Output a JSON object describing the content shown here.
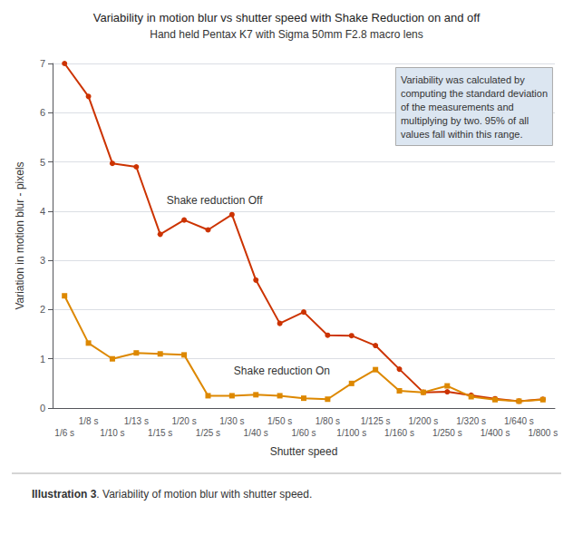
{
  "chart_data": {
    "type": "line",
    "title": "Variability in motion blur vs shutter speed with Shake Reduction on and off",
    "subtitle": "Hand held Pentax K7 with Sigma 50mm F2.8 macro lens",
    "xlabel": "Shutter speed",
    "ylabel": "Variation in motion blur - pixels",
    "annotation": "Variability was calculated by\ncomputing the standard deviation\nof the measurements and\nmultiplying by two. 95% of all\nvalues fall within this range.",
    "caption": [
      "Illustration 3",
      ". Variability of motion blur with shutter speed."
    ],
    "categories": [
      "1/6 s",
      "1/8 s",
      "1/10 s",
      "1/13 s",
      "1/15 s",
      "1/20 s",
      "1/25 s",
      "1/30 s",
      "1/40 s",
      "1/50 s",
      "1/60 s",
      "1/80 s",
      "1/100 s",
      "1/125 s",
      "1/160 s",
      "1/200 s",
      "1/250 s",
      "1/320 s",
      "1/400 s",
      "1/640 s",
      "1/800 s"
    ],
    "series": [
      {
        "name": "Shake reduction Off",
        "color": "#cc3300",
        "marker": "circle",
        "values": [
          7.0,
          6.33,
          4.97,
          4.9,
          3.53,
          3.82,
          3.62,
          3.93,
          2.6,
          1.72,
          1.95,
          1.48,
          1.47,
          1.27,
          0.79,
          0.32,
          0.33,
          0.26,
          0.19,
          0.14,
          0.18
        ]
      },
      {
        "name": "Shake reduction On",
        "color": "#dd8800",
        "marker": "square",
        "values": [
          2.28,
          1.32,
          1.0,
          1.12,
          1.1,
          1.08,
          0.25,
          0.25,
          0.27,
          0.25,
          0.2,
          0.18,
          0.5,
          0.78,
          0.35,
          0.32,
          0.45,
          0.23,
          0.17,
          0.14,
          0.17
        ]
      }
    ],
    "ylim": [
      0,
      7
    ],
    "yticks": [
      0,
      1,
      2,
      3,
      4,
      5,
      6,
      7
    ],
    "grid": true
  }
}
